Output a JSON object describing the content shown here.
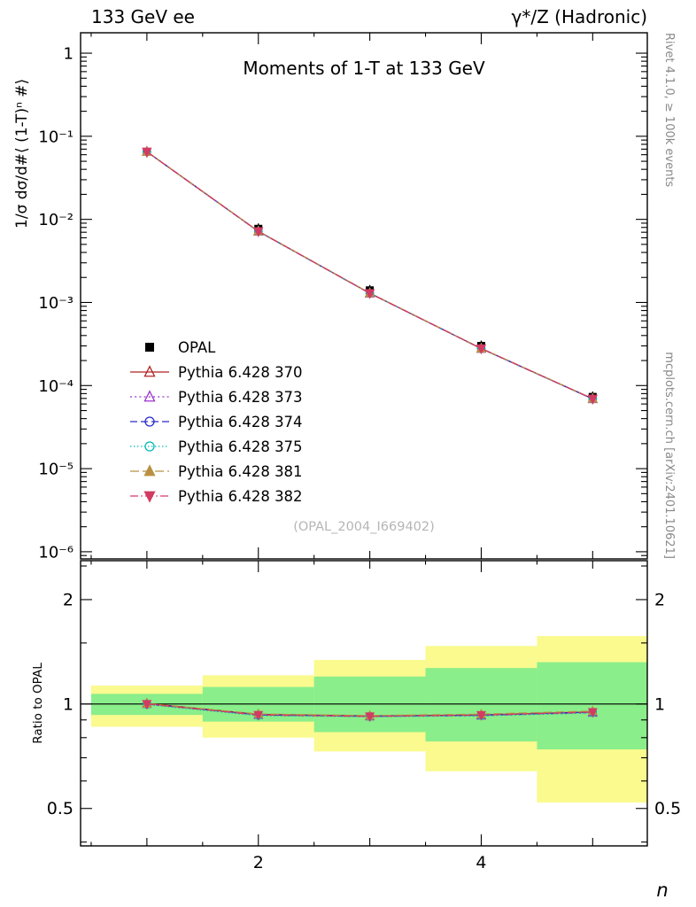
{
  "header": {
    "left": "133 GeV ee",
    "right": "γ*/Z (Hadronic)"
  },
  "side_notes": {
    "rivet": "Rivet 4.1.0, ≥ 100k events",
    "mcplots": "mcplots.cern.ch [arXiv:2401.10621]"
  },
  "watermark": "(OPAL_2004_I669402)",
  "chart_data": [
    {
      "type": "line",
      "panel": "main",
      "title": "Moments of 1-T at 133 GeV",
      "xlabel": "n",
      "ylabel": "1/σ  dσ/d#⟨ (1-T)ⁿ #⟩",
      "xlim": [
        0.405,
        5.49
      ],
      "ylog": true,
      "ylim": [
        8.2e-07,
        1.76
      ],
      "yticks": [
        1,
        0.1,
        0.01,
        0.001,
        0.0001,
        1e-05,
        1e-06
      ],
      "ytick_labels": [
        "1",
        "10⁻¹",
        "10⁻²",
        "10⁻³",
        "10⁻⁴",
        "10⁻⁵",
        "10⁻⁶"
      ],
      "xticks": [
        2,
        4
      ],
      "xtick_labels": [
        "2",
        "4"
      ],
      "x": [
        1,
        2,
        3,
        4,
        5
      ],
      "series": [
        {
          "name": "OPAL",
          "color": "#000000",
          "marker": "square-filled",
          "line": "none",
          "values": [
            0.065,
            0.0077,
            0.0014,
            0.0003,
            7.3e-05
          ]
        },
        {
          "name": "Pythia 6.428 370",
          "color": "#b22222",
          "marker": "triangle-open",
          "line": "solid",
          "values": [
            0.0653,
            0.00719,
            0.00129,
            0.000279,
            6.93e-05
          ]
        },
        {
          "name": "Pythia 6.428 373",
          "color": "#9933cc",
          "marker": "triangle-open",
          "line": "dotted",
          "values": [
            0.065,
            0.00716,
            0.00129,
            0.000278,
            6.89e-05
          ]
        },
        {
          "name": "Pythia 6.428 374",
          "color": "#2929cc",
          "marker": "circle-open",
          "line": "dashed",
          "values": [
            0.0651,
            0.00717,
            0.00129,
            0.000279,
            6.92e-05
          ]
        },
        {
          "name": "Pythia 6.428 375",
          "color": "#00b8b8",
          "marker": "circle-open",
          "line": "finedot",
          "values": [
            0.0647,
            0.00713,
            0.00129,
            0.000277,
            6.88e-05
          ]
        },
        {
          "name": "Pythia 6.428 381",
          "color": "#b99043",
          "marker": "triangle-filled",
          "line": "longdash",
          "values": [
            0.0651,
            0.00721,
            0.0013,
            0.00028,
            6.96e-05
          ]
        },
        {
          "name": "Pythia 6.428 382",
          "color": "#d23b63",
          "marker": "triangle-down-filled",
          "line": "dashdot",
          "values": [
            0.065,
            0.00716,
            0.00129,
            0.000279,
            6.92e-05
          ]
        }
      ]
    },
    {
      "type": "ratio",
      "panel": "ratio",
      "ylabel": "Ratio to OPAL",
      "ylog": true,
      "ylim": [
        0.39,
        2.59
      ],
      "yticks": [
        2,
        1,
        0.5
      ],
      "ytick_labels": [
        "2",
        "1",
        "0.5"
      ],
      "ytick_minor": [
        0.4,
        0.6,
        0.7,
        0.8,
        0.9,
        1.5,
        2.5
      ],
      "reference_line": 1,
      "band_colors": {
        "outer": "#fafa8e",
        "inner": "#8aee8a"
      },
      "bands": [
        {
          "x0": 0.5,
          "x1": 1.5,
          "outer": [
            0.86,
            1.13
          ],
          "inner": [
            0.93,
            1.07
          ]
        },
        {
          "x0": 1.5,
          "x1": 2.5,
          "outer": [
            0.8,
            1.21
          ],
          "inner": [
            0.89,
            1.12
          ]
        },
        {
          "x0": 2.5,
          "x1": 3.5,
          "outer": [
            0.73,
            1.34
          ],
          "inner": [
            0.83,
            1.2
          ]
        },
        {
          "x0": 3.5,
          "x1": 4.5,
          "outer": [
            0.64,
            1.47
          ],
          "inner": [
            0.78,
            1.27
          ]
        },
        {
          "x0": 4.5,
          "x1": 5.5,
          "outer": [
            0.52,
            1.57
          ],
          "inner": [
            0.74,
            1.32
          ]
        }
      ],
      "x": [
        1,
        2,
        3,
        4,
        5
      ],
      "series": [
        {
          "name": "Pythia 6.428 370",
          "values": [
            1.004,
            0.934,
            0.924,
            0.93,
            0.949
          ]
        },
        {
          "name": "Pythia 6.428 373",
          "values": [
            1.0,
            0.93,
            0.921,
            0.926,
            0.944
          ]
        },
        {
          "name": "Pythia 6.428 374",
          "values": [
            1.001,
            0.931,
            0.923,
            0.929,
            0.948
          ]
        },
        {
          "name": "Pythia 6.428 375",
          "values": [
            0.996,
            0.926,
            0.919,
            0.925,
            0.943
          ]
        },
        {
          "name": "Pythia 6.428 381",
          "values": [
            1.002,
            0.936,
            0.926,
            0.935,
            0.954
          ]
        },
        {
          "name": "Pythia 6.428 382",
          "values": [
            1.0,
            0.93,
            0.921,
            0.929,
            0.948
          ]
        }
      ]
    }
  ]
}
